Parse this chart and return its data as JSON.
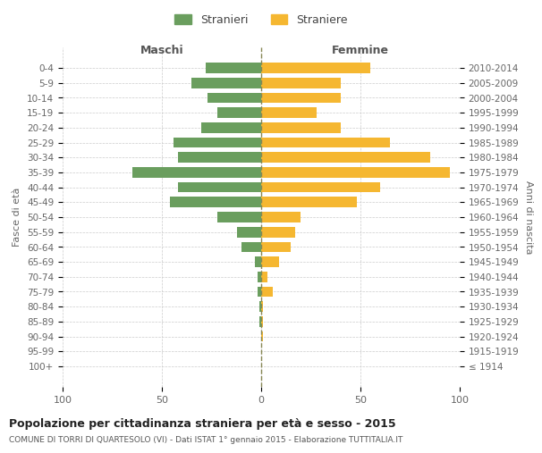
{
  "age_groups": [
    "100+",
    "95-99",
    "90-94",
    "85-89",
    "80-84",
    "75-79",
    "70-74",
    "65-69",
    "60-64",
    "55-59",
    "50-54",
    "45-49",
    "40-44",
    "35-39",
    "30-34",
    "25-29",
    "20-24",
    "15-19",
    "10-14",
    "5-9",
    "0-4"
  ],
  "birth_years": [
    "≤ 1914",
    "1915-1919",
    "1920-1924",
    "1925-1929",
    "1930-1934",
    "1935-1939",
    "1940-1944",
    "1945-1949",
    "1950-1954",
    "1955-1959",
    "1960-1964",
    "1965-1969",
    "1970-1974",
    "1975-1979",
    "1980-1984",
    "1985-1989",
    "1990-1994",
    "1995-1999",
    "2000-2004",
    "2005-2009",
    "2010-2014"
  ],
  "males": [
    0,
    0,
    0,
    1,
    1,
    2,
    2,
    3,
    10,
    12,
    22,
    46,
    42,
    65,
    42,
    44,
    30,
    22,
    27,
    35,
    28
  ],
  "females": [
    0,
    0,
    1,
    1,
    1,
    6,
    3,
    9,
    15,
    17,
    20,
    48,
    60,
    95,
    85,
    65,
    40,
    28,
    40,
    40,
    55
  ],
  "male_color": "#6a9e5e",
  "female_color": "#f5b731",
  "dashed_line_color": "#888855",
  "title": "Popolazione per cittadinanza straniera per età e sesso - 2015",
  "subtitle": "COMUNE DI TORRI DI QUARTESOLO (VI) - Dati ISTAT 1° gennaio 2015 - Elaborazione TUTTITALIA.IT",
  "ylabel_left": "Fasce di età",
  "ylabel_right": "Anni di nascita",
  "xlabel_min": -100,
  "xlabel_max": 100,
  "legend_stranieri": "Stranieri",
  "legend_straniere": "Straniere",
  "header_maschi": "Maschi",
  "header_femmine": "Femmine",
  "bg_color": "#ffffff",
  "grid_color": "#cccccc",
  "bar_height": 0.7
}
